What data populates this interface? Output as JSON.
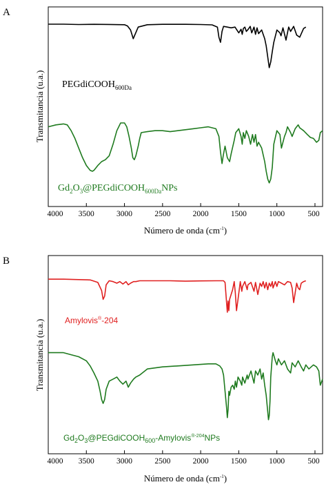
{
  "chart_data": [
    {
      "type": "line",
      "panel_label": "A",
      "xlabel": "Número de onda (cm",
      "xlabel_sup": "-1",
      "xlabel_end": ")",
      "ylabel": "Transmitancia (u.a.)",
      "xlim": [
        4000,
        400
      ],
      "x_reversed": true,
      "xticks": [
        4000,
        3500,
        3000,
        2500,
        2000,
        1500,
        1000,
        500
      ],
      "series": [
        {
          "label_main": "PEGdiCOOH",
          "label_sub": "600Da",
          "color": "#000000",
          "x": [
            4000,
            3800,
            3600,
            3400,
            3200,
            3000,
            2960,
            2920,
            2885,
            2860,
            2820,
            2700,
            2500,
            2200,
            2000,
            1850,
            1780,
            1760,
            1740,
            1720,
            1700,
            1650,
            1600,
            1550,
            1500,
            1470,
            1455,
            1440,
            1420,
            1400,
            1375,
            1350,
            1330,
            1300,
            1280,
            1260,
            1240,
            1200,
            1160,
            1140,
            1120,
            1100,
            1080,
            1060,
            1040,
            1000,
            960,
            945,
            920,
            880,
            845,
            820,
            780,
            740,
            700,
            650,
            620
          ],
          "y": [
            100,
            100,
            99.5,
            99.8,
            99.6,
            99.2,
            97.5,
            92,
            80,
            86,
            96,
            99.2,
            99.8,
            99.8,
            99.5,
            99,
            96,
            82,
            75,
            90,
            97,
            96,
            95,
            96,
            88,
            93,
            86,
            94,
            96,
            90,
            93,
            97,
            88,
            96,
            86,
            95,
            87,
            92,
            80,
            70,
            55,
            40,
            48,
            62,
            75,
            92,
            88,
            84,
            95,
            78,
            96,
            90,
            97,
            85,
            82,
            94,
            96
          ]
        },
        {
          "label_main": "Gd",
          "label_sub1": "2",
          "label_mid": "O",
          "label_sub2": "3",
          "label_rest": "@PEGdiCOOH",
          "label_sub3": "600Da",
          "label_end": "NPs",
          "color": "#1e7a1e",
          "x": [
            4000,
            3900,
            3800,
            3750,
            3700,
            3650,
            3600,
            3550,
            3500,
            3450,
            3420,
            3400,
            3350,
            3300,
            3250,
            3200,
            3150,
            3100,
            3050,
            3000,
            2970,
            2940,
            2910,
            2890,
            2870,
            2850,
            2820,
            2800,
            2780,
            2700,
            2600,
            2500,
            2400,
            2300,
            2200,
            2100,
            2000,
            1900,
            1800,
            1760,
            1740,
            1720,
            1700,
            1680,
            1650,
            1620,
            1600,
            1560,
            1540,
            1500,
            1470,
            1455,
            1440,
            1420,
            1400,
            1370,
            1345,
            1320,
            1300,
            1280,
            1260,
            1240,
            1200,
            1160,
            1140,
            1120,
            1100,
            1080,
            1060,
            1040,
            1000,
            980,
            960,
            940,
            900,
            880,
            860,
            820,
            800,
            760,
            720,
            700,
            650,
            600,
            560,
            520,
            480,
            450,
            430,
            400
          ],
          "y": [
            76,
            78,
            79,
            78,
            72,
            64,
            54,
            44,
            36,
            31,
            30,
            31,
            36,
            40,
            42,
            46,
            58,
            72,
            80,
            80,
            76,
            66,
            54,
            44,
            42,
            46,
            56,
            64,
            70,
            71,
            72,
            72,
            71,
            72,
            73,
            74,
            75,
            76,
            74,
            66,
            50,
            38,
            48,
            56,
            44,
            40,
            48,
            62,
            70,
            74,
            66,
            58,
            70,
            64,
            72,
            66,
            58,
            68,
            60,
            68,
            56,
            60,
            54,
            40,
            30,
            22,
            18,
            22,
            34,
            58,
            72,
            70,
            68,
            54,
            66,
            70,
            76,
            70,
            66,
            74,
            78,
            75,
            72,
            68,
            65,
            64,
            60,
            62,
            70,
            72
          ]
        }
      ]
    },
    {
      "type": "line",
      "panel_label": "B",
      "xlabel": "Número de onda (cm",
      "xlabel_sup": "-1",
      "xlabel_end": ")",
      "ylabel": "Transmitancia (u.a.)",
      "xlim": [
        4000,
        400
      ],
      "x_reversed": true,
      "xticks": [
        4000,
        3500,
        3000,
        2500,
        2000,
        1500,
        1000,
        500
      ],
      "series": [
        {
          "label_main": "Amylovis",
          "label_sup": "®",
          "label_end": "-204",
          "color": "#e02020",
          "x": [
            4000,
            3800,
            3600,
            3450,
            3350,
            3300,
            3280,
            3260,
            3240,
            3200,
            3150,
            3100,
            3060,
            3020,
            2980,
            2950,
            2920,
            2880,
            2850,
            2800,
            2600,
            2400,
            2200,
            2000,
            1800,
            1700,
            1680,
            1660,
            1650,
            1640,
            1630,
            1620,
            1600,
            1580,
            1560,
            1545,
            1530,
            1510,
            1480,
            1460,
            1450,
            1420,
            1390,
            1380,
            1340,
            1300,
            1280,
            1250,
            1220,
            1200,
            1180,
            1160,
            1140,
            1120,
            1100,
            1080,
            1060,
            1050,
            1020,
            1000,
            980,
            940,
            900,
            860,
            820,
            800,
            780,
            760,
            740,
            720,
            700,
            680,
            650,
            620
          ],
          "y": [
            99,
            99,
            98.5,
            98,
            95,
            85,
            74,
            78,
            92,
            97,
            96,
            94,
            96,
            93,
            96,
            92,
            94,
            96,
            96,
            97,
            97,
            97,
            96.5,
            96.8,
            97,
            97,
            95,
            70,
            58,
            72,
            60,
            74,
            80,
            86,
            96,
            82,
            60,
            74,
            96,
            84,
            90,
            96,
            86,
            92,
            95,
            84,
            95,
            80,
            94,
            90,
            96,
            88,
            95,
            86,
            94,
            90,
            96,
            88,
            96,
            90,
            96,
            94,
            92,
            96,
            95,
            88,
            70,
            82,
            94,
            88,
            86,
            94,
            96,
            97
          ]
        },
        {
          "label_main": "Gd",
          "label_sub1": "2",
          "label_mid": "O",
          "label_sub2": "3",
          "label_rest": "@PEGdiCOOH",
          "label_sub3": "600",
          "label_dash": "-Amylovis",
          "label_sup": "®-204",
          "label_end": "NPs",
          "color": "#1e7a1e",
          "x": [
            4000,
            3800,
            3700,
            3600,
            3500,
            3450,
            3400,
            3350,
            3320,
            3300,
            3280,
            3260,
            3240,
            3200,
            3150,
            3100,
            3060,
            3020,
            2980,
            2950,
            2920,
            2880,
            2850,
            2800,
            2700,
            2500,
            2300,
            2100,
            1900,
            1800,
            1750,
            1720,
            1700,
            1690,
            1670,
            1660,
            1650,
            1640,
            1630,
            1620,
            1600,
            1580,
            1560,
            1545,
            1530,
            1510,
            1480,
            1460,
            1450,
            1420,
            1390,
            1380,
            1340,
            1320,
            1300,
            1280,
            1250,
            1220,
            1200,
            1180,
            1160,
            1140,
            1120,
            1110,
            1100,
            1090,
            1080,
            1060,
            1050,
            1020,
            1000,
            980,
            940,
            900,
            860,
            820,
            800,
            760,
            720,
            680,
            650,
            620,
            580,
            520,
            480,
            450,
            430,
            400
          ],
          "y": [
            88,
            88,
            86,
            84,
            80,
            75,
            68,
            60,
            50,
            42,
            38,
            42,
            52,
            60,
            62,
            64,
            60,
            57,
            60,
            54,
            58,
            62,
            64,
            66,
            72,
            74,
            75,
            76,
            77,
            77,
            75,
            72,
            66,
            58,
            42,
            34,
            24,
            32,
            50,
            46,
            54,
            56,
            52,
            60,
            54,
            64,
            60,
            56,
            64,
            58,
            66,
            62,
            70,
            64,
            58,
            70,
            66,
            72,
            62,
            68,
            56,
            46,
            30,
            22,
            26,
            40,
            64,
            84,
            88,
            80,
            76,
            82,
            76,
            80,
            72,
            68,
            78,
            74,
            80,
            74,
            70,
            76,
            72,
            76,
            74,
            70,
            56,
            62
          ]
        }
      ]
    }
  ]
}
